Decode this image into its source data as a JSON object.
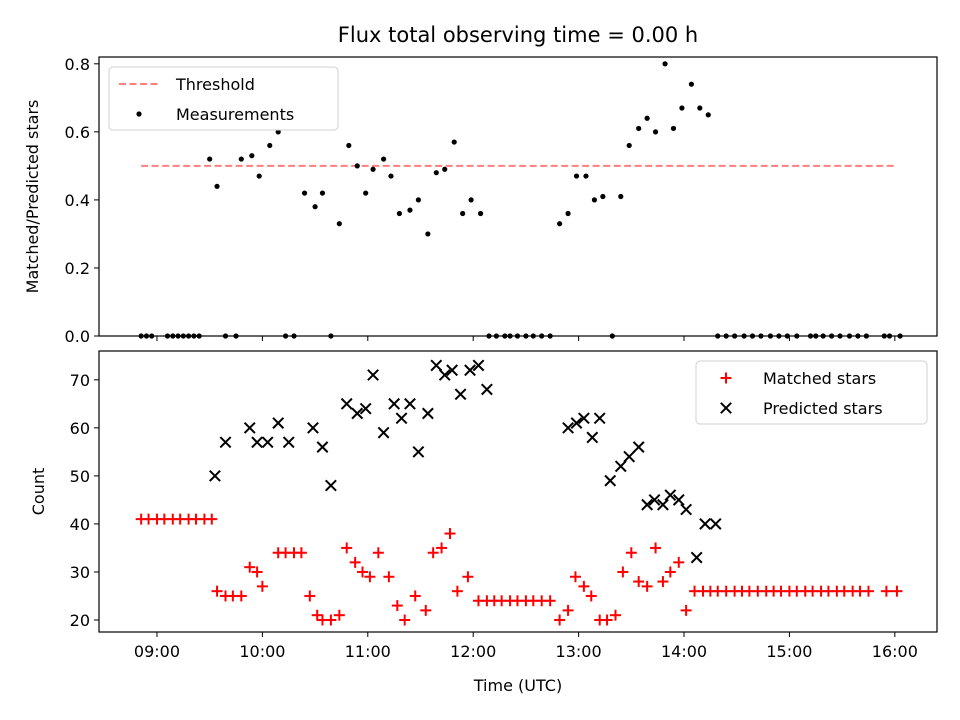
{
  "chart_data": {
    "title": "Flux total observing time = 0.00 h",
    "xlabel": "Time (UTC)",
    "x_tick_labels": [
      "09:00",
      "10:00",
      "11:00",
      "12:00",
      "13:00",
      "14:00",
      "15:00",
      "16:00"
    ],
    "x_ticks_hours": [
      9,
      10,
      11,
      12,
      13,
      14,
      15,
      16
    ],
    "xlim_hours": [
      8.45,
      16.4
    ],
    "panels": [
      {
        "type": "scatter",
        "ylabel": "Matched/Predicted stars",
        "ylim": [
          0,
          0.82
        ],
        "y_ticks": [
          0.0,
          0.2,
          0.4,
          0.6,
          0.8
        ],
        "y_tick_labels": [
          "0.0",
          "0.2",
          "0.4",
          "0.6",
          "0.8"
        ],
        "legend_position": "upper-left",
        "series": [
          {
            "name": "Threshold",
            "kind": "dashed-line",
            "color": "#ff7f7f",
            "x": [
              8.85,
              16.0
            ],
            "y": [
              0.5,
              0.5
            ]
          },
          {
            "name": "Measurements",
            "kind": "points",
            "color": "#000000",
            "x": [
              8.85,
              8.9,
              8.95,
              9.1,
              9.15,
              9.2,
              9.25,
              9.3,
              9.35,
              9.4,
              9.5,
              9.57,
              9.65,
              9.75,
              9.8,
              9.9,
              9.97,
              10.07,
              10.15,
              10.22,
              10.3,
              10.4,
              10.5,
              10.57,
              10.65,
              10.73,
              10.82,
              10.9,
              10.98,
              11.05,
              11.15,
              11.22,
              11.3,
              11.4,
              11.48,
              11.57,
              11.65,
              11.73,
              11.82,
              11.9,
              11.98,
              12.07,
              12.15,
              12.22,
              12.3,
              12.35,
              12.42,
              12.5,
              12.57,
              12.65,
              12.73,
              12.82,
              12.9,
              12.98,
              13.07,
              13.15,
              13.23,
              13.32,
              13.4,
              13.48,
              13.57,
              13.65,
              13.73,
              13.82,
              13.9,
              13.98,
              14.07,
              14.15,
              14.23,
              14.32,
              14.4,
              14.48,
              14.57,
              14.65,
              14.73,
              14.82,
              14.9,
              14.98,
              15.07,
              15.2,
              15.25,
              15.32,
              15.4,
              15.48,
              15.57,
              15.65,
              15.73,
              15.9,
              15.95,
              16.05
            ],
            "y": [
              0,
              0,
              0,
              0,
              0,
              0,
              0,
              0,
              0,
              0,
              0.52,
              0.44,
              0,
              0,
              0.52,
              0.53,
              0.47,
              0.56,
              0.6,
              0,
              0,
              0.42,
              0.38,
              0.42,
              0,
              0.33,
              0.56,
              0.5,
              0.42,
              0.49,
              0.52,
              0.47,
              0.36,
              0.37,
              0.4,
              0.3,
              0.48,
              0.49,
              0.57,
              0.36,
              0.4,
              0.36,
              0,
              0,
              0,
              0,
              0,
              0,
              0,
              0,
              0,
              0.33,
              0.36,
              0.47,
              0.47,
              0.4,
              0.41,
              0,
              0.41,
              0.56,
              0.61,
              0.64,
              0.6,
              0.8,
              0.61,
              0.67,
              0.74,
              0.67,
              0.65,
              0,
              0,
              0,
              0,
              0,
              0,
              0,
              0,
              0,
              0,
              0,
              0,
              0,
              0,
              0,
              0,
              0,
              0,
              0,
              0,
              0
            ]
          }
        ]
      },
      {
        "type": "scatter",
        "ylabel": "Count",
        "ylim": [
          17.5,
          76
        ],
        "y_ticks": [
          20,
          30,
          40,
          50,
          60,
          70
        ],
        "y_tick_labels": [
          "20",
          "30",
          "40",
          "50",
          "60",
          "70"
        ],
        "legend_position": "upper-right",
        "series": [
          {
            "name": "Matched stars",
            "kind": "plus",
            "color": "#ff0000",
            "x": [
              8.85,
              8.92,
              9.0,
              9.07,
              9.15,
              9.22,
              9.3,
              9.37,
              9.45,
              9.52,
              9.57,
              9.65,
              9.72,
              9.8,
              9.88,
              9.95,
              10.0,
              10.15,
              10.22,
              10.3,
              10.37,
              10.45,
              10.52,
              10.57,
              10.65,
              10.73,
              10.8,
              10.88,
              10.95,
              11.02,
              11.1,
              11.2,
              11.28,
              11.35,
              11.45,
              11.55,
              11.62,
              11.7,
              11.78,
              11.85,
              11.95,
              12.05,
              12.13,
              12.2,
              12.27,
              12.35,
              12.42,
              12.5,
              12.57,
              12.65,
              12.73,
              12.82,
              12.9,
              12.97,
              13.05,
              13.12,
              13.2,
              13.27,
              13.35,
              13.42,
              13.5,
              13.57,
              13.65,
              13.73,
              13.8,
              13.87,
              13.95,
              14.02,
              14.1,
              14.18,
              14.25,
              14.32,
              14.4,
              14.48,
              14.55,
              14.62,
              14.7,
              14.78,
              14.85,
              14.92,
              15.0,
              15.07,
              15.15,
              15.22,
              15.3,
              15.37,
              15.45,
              15.52,
              15.6,
              15.67,
              15.75,
              15.92,
              16.02
            ],
            "y": [
              41,
              41,
              41,
              41,
              41,
              41,
              41,
              41,
              41,
              41,
              26,
              25,
              25,
              25,
              31,
              30,
              27,
              34,
              34,
              34,
              34,
              25,
              21,
              20,
              20,
              21,
              35,
              32,
              30,
              29,
              34,
              29,
              23,
              20,
              25,
              22,
              34,
              35,
              38,
              26,
              29,
              24,
              24,
              24,
              24,
              24,
              24,
              24,
              24,
              24,
              24,
              20,
              22,
              29,
              27,
              25,
              20,
              20,
              21,
              30,
              34,
              28,
              27,
              35,
              28,
              30,
              32,
              22,
              26,
              26,
              26,
              26,
              26,
              26,
              26,
              26,
              26,
              26,
              26,
              26,
              26,
              26,
              26,
              26,
              26,
              26,
              26,
              26,
              26,
              26,
              26,
              26,
              26
            ]
          },
          {
            "name": "Predicted stars",
            "kind": "x",
            "color": "#000000",
            "x": [
              9.55,
              9.65,
              9.88,
              9.95,
              10.05,
              10.15,
              10.25,
              10.48,
              10.57,
              10.65,
              10.8,
              10.9,
              10.98,
              11.05,
              11.15,
              11.25,
              11.32,
              11.4,
              11.48,
              11.57,
              11.65,
              11.73,
              11.8,
              11.88,
              11.97,
              12.05,
              12.13,
              12.9,
              12.98,
              13.05,
              13.13,
              13.2,
              13.3,
              13.4,
              13.48,
              13.57,
              13.65,
              13.72,
              13.8,
              13.87,
              13.95,
              14.02,
              14.12,
              14.2,
              14.3
            ],
            "y": [
              50,
              57,
              60,
              57,
              57,
              61,
              57,
              60,
              56,
              48,
              65,
              63,
              64,
              71,
              59,
              65,
              62,
              65,
              55,
              63,
              73,
              71,
              72,
              67,
              72,
              73,
              68,
              60,
              61,
              62,
              58,
              62,
              49,
              52,
              54,
              56,
              44,
              45,
              44,
              46,
              45,
              43,
              33,
              40,
              40
            ]
          }
        ]
      }
    ]
  }
}
